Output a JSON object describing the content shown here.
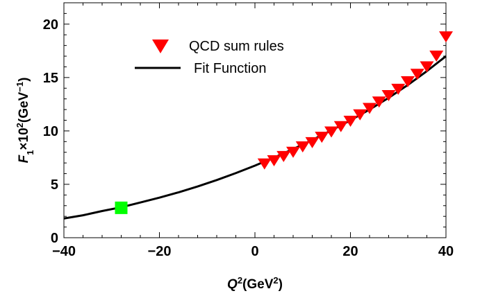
{
  "chart_data": {
    "type": "line",
    "xlabel": {
      "base": "Q",
      "sup": "2",
      "unit_pre": "(GeV",
      "unit_sup": "2",
      "unit_post": ")"
    },
    "ylabel": {
      "base": "F",
      "sub": "1",
      "times": "×10",
      "sup": "2",
      "unit_pre": "(GeV",
      "unit_sup": "−1",
      "unit_post": ")"
    },
    "xlim": [
      -40,
      40
    ],
    "ylim": [
      0,
      22
    ],
    "x_ticks": [
      -40,
      -20,
      0,
      20,
      40
    ],
    "x_tick_labels": [
      "−40",
      "−20",
      "0",
      "20",
      "40"
    ],
    "y_ticks": [
      0,
      5,
      10,
      15,
      20
    ],
    "y_tick_labels": [
      "0",
      "5",
      "10",
      "15",
      "20"
    ],
    "legend": {
      "placement": "top-center",
      "entries": [
        {
          "label": "QCD sum rules",
          "marker": "triangle-down",
          "color": "#ff0000"
        },
        {
          "label": "Fit Function",
          "marker": "line",
          "color": "#000000"
        }
      ]
    },
    "series": [
      {
        "name": "QCD sum rules",
        "kind": "scatter",
        "marker": "triangle-down",
        "color": "#ff0000",
        "x": [
          2,
          4,
          6,
          8,
          10,
          12,
          14,
          16,
          18,
          20,
          22,
          24,
          26,
          28,
          30,
          32,
          34,
          36,
          38,
          40
        ],
        "y": [
          6.9,
          7.2,
          7.6,
          8.0,
          8.5,
          8.9,
          9.4,
          9.9,
          10.4,
          10.9,
          11.5,
          12.1,
          12.7,
          13.3,
          13.9,
          14.6,
          15.3,
          16.0,
          17.0,
          18.8
        ]
      },
      {
        "name": "Fit Function",
        "kind": "line",
        "color": "#000000",
        "x": [
          -40,
          -36,
          -32,
          -28,
          -24,
          -20,
          -16,
          -12,
          -8,
          -4,
          0,
          4,
          8,
          12,
          16,
          20,
          24,
          28,
          32,
          36,
          40
        ],
        "y": [
          1.8,
          2.1,
          2.5,
          2.85,
          3.3,
          3.75,
          4.25,
          4.8,
          5.4,
          6.05,
          6.75,
          7.5,
          8.3,
          9.15,
          10.05,
          11.0,
          12.0,
          13.1,
          14.3,
          15.6,
          17.0
        ]
      },
      {
        "kind": "scatter",
        "marker": "square",
        "color": "#00ff00",
        "x": [
          -28
        ],
        "y": [
          2.8
        ]
      }
    ]
  }
}
